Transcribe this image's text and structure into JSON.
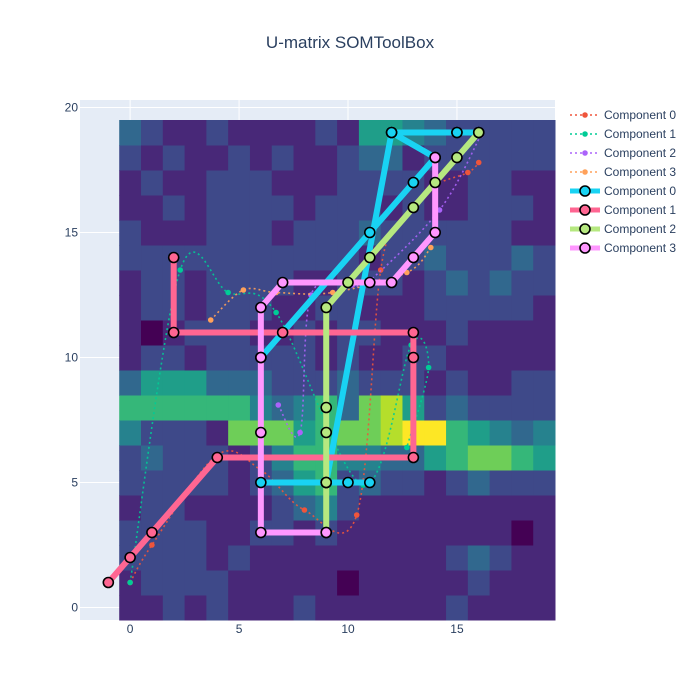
{
  "chart_data": {
    "type": "heatmap",
    "title": "U-matrix SOMToolBox",
    "xlim": [
      -2.3,
      19.5
    ],
    "ylim": [
      -0.5,
      20.3
    ],
    "xticks": [
      0,
      5,
      10,
      15
    ],
    "yticks": [
      0,
      5,
      10,
      15,
      20
    ],
    "heatmap": {
      "x_range": [
        -0.5,
        19.5
      ],
      "y_range": [
        -0.5,
        19.5
      ],
      "colorscale": [
        "#440154",
        "#482878",
        "#3e4989",
        "#31688e",
        "#26828e",
        "#1f9e89",
        "#35b779",
        "#6ece58",
        "#b5de2b",
        "#fde725"
      ],
      "z": [
        [
          0.12,
          0.16,
          0.18,
          0.12,
          0.2,
          0.1,
          0.08,
          0.14,
          0.22,
          0.06,
          0.16,
          0.12,
          0.14,
          0.08,
          0.12,
          0.18,
          0.16,
          0.1,
          0.08,
          0.12
        ],
        [
          0.14,
          0.18,
          0.22,
          0.2,
          0.18,
          0.14,
          0.1,
          0.12,
          0.06,
          0.08,
          0.04,
          0.08,
          0.06,
          0.1,
          0.12,
          0.16,
          0.22,
          0.12,
          0.06,
          0.1
        ],
        [
          0.18,
          0.26,
          0.2,
          0.22,
          0.16,
          0.18,
          0.14,
          0.08,
          0.12,
          0.1,
          0.06,
          0.1,
          0.08,
          0.12,
          0.06,
          0.18,
          0.28,
          0.2,
          0.1,
          0.14
        ],
        [
          0.22,
          0.2,
          0.24,
          0.18,
          0.12,
          0.16,
          0.24,
          0.2,
          0.14,
          0.18,
          0.16,
          0.12,
          0.1,
          0.06,
          0.08,
          0.12,
          0.14,
          0.08,
          0.04,
          0.06
        ],
        [
          0.16,
          0.22,
          0.2,
          0.16,
          0.14,
          0.12,
          0.1,
          0.24,
          0.3,
          0.46,
          0.2,
          0.14,
          0.12,
          0.08,
          0.1,
          0.12,
          0.16,
          0.1,
          0.06,
          0.08
        ],
        [
          0.2,
          0.24,
          0.22,
          0.2,
          0.18,
          0.16,
          0.24,
          0.34,
          0.58,
          0.62,
          0.26,
          0.32,
          0.22,
          0.18,
          0.14,
          0.22,
          0.28,
          0.24,
          0.2,
          0.18
        ],
        [
          0.26,
          0.3,
          0.18,
          0.22,
          0.2,
          0.14,
          0.26,
          0.4,
          0.64,
          0.7,
          0.4,
          0.48,
          0.3,
          0.32,
          0.6,
          0.66,
          0.74,
          0.76,
          0.62,
          0.58
        ],
        [
          0.44,
          0.22,
          0.18,
          0.2,
          0.1,
          0.76,
          0.82,
          0.78,
          0.56,
          0.7,
          0.76,
          0.8,
          0.86,
          0.96,
          1.0,
          0.64,
          0.5,
          0.42,
          0.36,
          0.4
        ],
        [
          0.72,
          0.68,
          0.64,
          0.66,
          0.7,
          0.62,
          0.4,
          0.36,
          0.48,
          0.66,
          0.3,
          0.74,
          0.84,
          0.58,
          0.24,
          0.3,
          0.26,
          0.22,
          0.24,
          0.2
        ],
        [
          0.28,
          0.6,
          0.56,
          0.6,
          0.34,
          0.3,
          0.32,
          0.24,
          0.2,
          0.26,
          0.28,
          0.2,
          0.22,
          0.18,
          0.16,
          0.2,
          0.14,
          0.12,
          0.18,
          0.22
        ],
        [
          0.14,
          0.18,
          0.2,
          0.16,
          0.24,
          0.22,
          0.2,
          0.18,
          0.26,
          0.14,
          0.2,
          0.16,
          0.12,
          0.18,
          0.2,
          0.12,
          0.16,
          0.1,
          0.14,
          0.12
        ],
        [
          0.1,
          0.04,
          0.16,
          0.22,
          0.2,
          0.18,
          0.14,
          0.12,
          0.2,
          0.16,
          0.18,
          0.22,
          0.12,
          0.1,
          0.14,
          0.18,
          0.08,
          0.1,
          0.16,
          0.08
        ],
        [
          0.16,
          0.22,
          0.18,
          0.12,
          0.2,
          0.24,
          0.18,
          0.14,
          0.1,
          0.2,
          0.22,
          0.16,
          0.14,
          0.12,
          0.18,
          0.24,
          0.22,
          0.2,
          0.18,
          0.14
        ],
        [
          0.14,
          0.18,
          0.2,
          0.16,
          0.22,
          0.26,
          0.2,
          0.18,
          0.16,
          0.14,
          0.18,
          0.22,
          0.2,
          0.16,
          0.24,
          0.28,
          0.26,
          0.3,
          0.24,
          0.18
        ],
        [
          0.18,
          0.26,
          0.22,
          0.2,
          0.18,
          0.22,
          0.24,
          0.2,
          0.18,
          0.22,
          0.2,
          0.16,
          0.18,
          0.24,
          0.3,
          0.22,
          0.2,
          0.24,
          0.28,
          0.22
        ],
        [
          0.2,
          0.16,
          0.12,
          0.14,
          0.2,
          0.24,
          0.18,
          0.16,
          0.22,
          0.18,
          0.24,
          0.3,
          0.2,
          0.18,
          0.26,
          0.24,
          0.2,
          0.18,
          0.16,
          0.14
        ],
        [
          0.12,
          0.14,
          0.18,
          0.16,
          0.2,
          0.22,
          0.18,
          0.2,
          0.16,
          0.18,
          0.24,
          0.2,
          0.16,
          0.18,
          0.1,
          0.14,
          0.24,
          0.18,
          0.2,
          0.16
        ],
        [
          0.14,
          0.18,
          0.16,
          0.12,
          0.22,
          0.26,
          0.18,
          0.14,
          0.12,
          0.16,
          0.2,
          0.18,
          0.22,
          0.2,
          0.16,
          0.12,
          0.18,
          0.22,
          0.16,
          0.14
        ],
        [
          0.24,
          0.08,
          0.18,
          0.16,
          0.14,
          0.2,
          0.16,
          0.18,
          0.14,
          0.16,
          0.26,
          0.34,
          0.28,
          0.16,
          0.2,
          0.18,
          0.22,
          0.26,
          0.2,
          0.22
        ],
        [
          0.3,
          0.26,
          0.14,
          0.16,
          0.18,
          0.06,
          0.14,
          0.12,
          0.16,
          0.2,
          0.14,
          0.5,
          0.56,
          0.44,
          0.28,
          0.24,
          0.2,
          0.18,
          0.24,
          0.26
        ]
      ]
    },
    "series": [
      {
        "name": "Component 0",
        "style": "dotted",
        "color": "#EF553B",
        "x": [
          0,
          1,
          4,
          6,
          8,
          10.4,
          11.5,
          12.5,
          13.8,
          15.5,
          16
        ],
        "y": [
          1,
          2.5,
          6.1,
          5.5,
          3.9,
          3.7,
          13.5,
          15.5,
          16.8,
          17.4,
          17.8
        ]
      },
      {
        "name": "Component 1",
        "style": "dotted",
        "color": "#00CC96",
        "x": [
          0,
          2.3,
          4.5,
          6.7,
          10.7,
          12.9,
          13.7,
          12.7
        ],
        "y": [
          1,
          13.5,
          12.6,
          11.8,
          4.9,
          10.5,
          9.6,
          6.4
        ]
      },
      {
        "name": "Component 2",
        "style": "dotted",
        "color": "#AB63FA",
        "x": [
          6.8,
          7.8,
          8.3,
          10.2,
          10.9,
          14.2,
          16.1
        ],
        "y": [
          8.1,
          7.0,
          12.5,
          12.9,
          13.0,
          15.9,
          18.9
        ]
      },
      {
        "name": "Component 3",
        "style": "dotted",
        "color": "#FFA15A",
        "x": [
          3.7,
          5.2,
          6.7,
          9.3,
          12.7,
          13.8
        ],
        "y": [
          11.5,
          12.7,
          12.6,
          12.6,
          13.4,
          14.4
        ]
      },
      {
        "name": "Component 0",
        "style": "thick",
        "color": "#19D3F3",
        "x": [
          6,
          11,
          13,
          14,
          12,
          15,
          16,
          15,
          12,
          9,
          6,
          11,
          10,
          9
        ],
        "y": [
          10,
          15,
          17,
          18,
          19,
          19,
          19,
          19,
          19,
          5,
          5,
          5,
          5,
          5
        ]
      },
      {
        "name": "Component 1",
        "style": "thick",
        "color": "#FF6692",
        "x": [
          -1,
          0,
          1,
          4,
          13,
          13,
          13,
          7,
          2,
          2
        ],
        "y": [
          1,
          2,
          3,
          6,
          6,
          10,
          11,
          11,
          11,
          14
        ]
      },
      {
        "name": "Component 2",
        "style": "thick",
        "color": "#B6E880",
        "x": [
          16,
          15,
          14,
          13,
          11,
          10,
          9,
          9,
          9,
          9,
          9
        ],
        "y": [
          19,
          18,
          17,
          16,
          14,
          13,
          12,
          8,
          7,
          5,
          3
        ]
      },
      {
        "name": "Component 3",
        "style": "thick",
        "color": "#FF97FF",
        "x": [
          9,
          6,
          6,
          6,
          6,
          7,
          11,
          12,
          13,
          14,
          14
        ],
        "y": [
          3,
          3,
          7,
          10,
          12,
          13,
          13,
          13,
          14,
          15,
          18
        ]
      }
    ]
  }
}
